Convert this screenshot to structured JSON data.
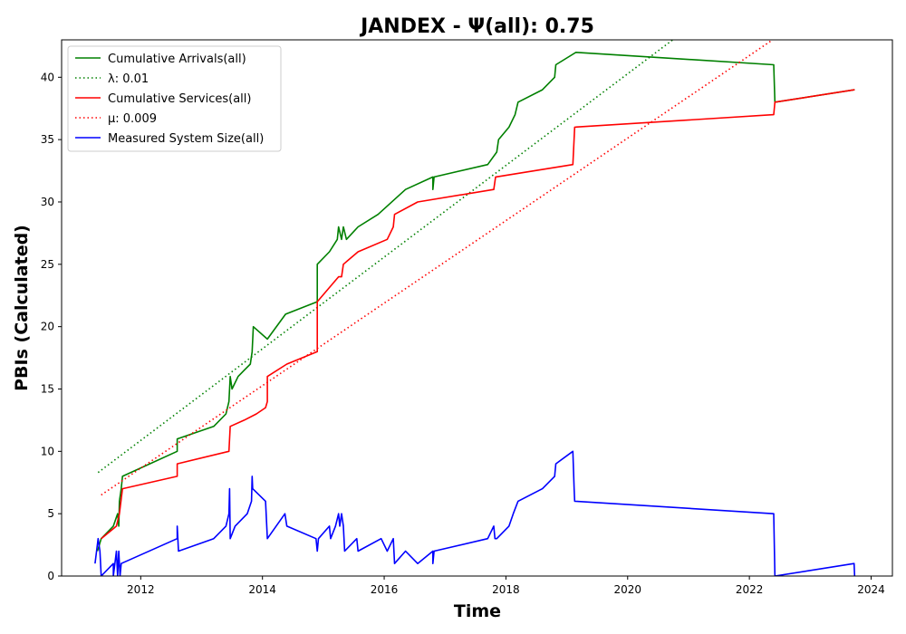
{
  "chart_data": {
    "type": "line",
    "title": "JANDEX -  Ψ(all): 0.75",
    "xlabel": "Time",
    "ylabel": "PBIs (Calculated)",
    "xlim": [
      2010.7,
      2024.35
    ],
    "ylim": [
      0,
      43
    ],
    "xticks": [
      2012,
      2014,
      2016,
      2018,
      2020,
      2022,
      2024
    ],
    "yticks": [
      0,
      5,
      10,
      15,
      20,
      25,
      30,
      35,
      40
    ],
    "grid": false,
    "legend_position": "upper-left",
    "series": [
      {
        "name": "Cumulative Arrivals(all)",
        "color": "#008000",
        "style": "solid",
        "points": [
          [
            2011.29,
            2
          ],
          [
            2011.35,
            3
          ],
          [
            2011.55,
            4
          ],
          [
            2011.62,
            5
          ],
          [
            2011.64,
            4
          ],
          [
            2011.65,
            6
          ],
          [
            2011.68,
            7
          ],
          [
            2011.7,
            8
          ],
          [
            2012.6,
            10
          ],
          [
            2012.6,
            11
          ],
          [
            2013.2,
            12
          ],
          [
            2013.4,
            13
          ],
          [
            2013.45,
            14
          ],
          [
            2013.47,
            16
          ],
          [
            2013.5,
            15
          ],
          [
            2013.6,
            16
          ],
          [
            2013.7,
            16.5
          ],
          [
            2013.8,
            17
          ],
          [
            2013.83,
            18
          ],
          [
            2013.85,
            20
          ],
          [
            2014.08,
            19
          ],
          [
            2014.38,
            21
          ],
          [
            2014.9,
            22
          ],
          [
            2014.9,
            25
          ],
          [
            2015.1,
            26
          ],
          [
            2015.23,
            27
          ],
          [
            2015.25,
            28
          ],
          [
            2015.3,
            27
          ],
          [
            2015.33,
            28
          ],
          [
            2015.38,
            27
          ],
          [
            2015.57,
            28
          ],
          [
            2015.9,
            29
          ],
          [
            2016.35,
            31
          ],
          [
            2016.8,
            32
          ],
          [
            2016.8,
            31
          ],
          [
            2016.82,
            32
          ],
          [
            2017.7,
            33
          ],
          [
            2017.85,
            34
          ],
          [
            2017.88,
            35
          ],
          [
            2018.05,
            36
          ],
          [
            2018.15,
            37
          ],
          [
            2018.2,
            38
          ],
          [
            2018.6,
            39
          ],
          [
            2018.8,
            40
          ],
          [
            2018.82,
            41
          ],
          [
            2019.15,
            42
          ],
          [
            2022.4,
            41
          ],
          [
            2022.42,
            38
          ],
          [
            2023.73,
            39
          ]
        ]
      },
      {
        "name": "λ: 0.01",
        "color": "#008000",
        "style": "dotted",
        "points": [
          [
            2011.3,
            8.3
          ],
          [
            2020.74,
            43
          ]
        ]
      },
      {
        "name": "Cumulative Services(all)",
        "color": "#ff0000",
        "style": "solid",
        "points": [
          [
            2011.35,
            3
          ],
          [
            2011.6,
            4
          ],
          [
            2011.65,
            5
          ],
          [
            2011.7,
            7
          ],
          [
            2012.6,
            8
          ],
          [
            2012.6,
            9
          ],
          [
            2013.45,
            10
          ],
          [
            2013.47,
            12
          ],
          [
            2013.7,
            12.5
          ],
          [
            2013.9,
            13
          ],
          [
            2014.05,
            13.5
          ],
          [
            2014.08,
            14
          ],
          [
            2014.08,
            16
          ],
          [
            2014.4,
            17
          ],
          [
            2014.9,
            18
          ],
          [
            2014.9,
            22
          ],
          [
            2015.25,
            24
          ],
          [
            2015.3,
            24
          ],
          [
            2015.33,
            25
          ],
          [
            2015.57,
            26
          ],
          [
            2016.05,
            27
          ],
          [
            2016.15,
            28
          ],
          [
            2016.17,
            29
          ],
          [
            2016.55,
            30
          ],
          [
            2017.8,
            31
          ],
          [
            2017.83,
            32
          ],
          [
            2019.1,
            33
          ],
          [
            2019.13,
            36
          ],
          [
            2022.4,
            37
          ],
          [
            2022.42,
            38
          ],
          [
            2023.73,
            39
          ]
        ]
      },
      {
        "name": "μ: 0.009",
        "color": "#ff0000",
        "style": "dotted",
        "points": [
          [
            2011.35,
            6.5
          ],
          [
            2022.38,
            43
          ]
        ]
      },
      {
        "name": "Measured System Size(all)",
        "color": "#0000ff",
        "style": "solid",
        "points": [
          [
            2011.25,
            1
          ],
          [
            2011.3,
            3
          ],
          [
            2011.33,
            2
          ],
          [
            2011.35,
            0
          ],
          [
            2011.55,
            1
          ],
          [
            2011.55,
            0
          ],
          [
            2011.6,
            2
          ],
          [
            2011.62,
            0
          ],
          [
            2011.64,
            2
          ],
          [
            2011.66,
            0
          ],
          [
            2011.68,
            1
          ],
          [
            2012.6,
            3
          ],
          [
            2012.6,
            4
          ],
          [
            2012.62,
            2
          ],
          [
            2013.2,
            3
          ],
          [
            2013.4,
            4
          ],
          [
            2013.45,
            5
          ],
          [
            2013.46,
            7
          ],
          [
            2013.47,
            3
          ],
          [
            2013.55,
            4
          ],
          [
            2013.75,
            5
          ],
          [
            2013.82,
            6
          ],
          [
            2013.83,
            8
          ],
          [
            2013.84,
            7
          ],
          [
            2014.05,
            6
          ],
          [
            2014.08,
            3
          ],
          [
            2014.37,
            5
          ],
          [
            2014.4,
            4
          ],
          [
            2014.88,
            3
          ],
          [
            2014.9,
            2
          ],
          [
            2014.92,
            3
          ],
          [
            2015.1,
            4
          ],
          [
            2015.12,
            3
          ],
          [
            2015.2,
            4
          ],
          [
            2015.25,
            5
          ],
          [
            2015.27,
            4
          ],
          [
            2015.3,
            5
          ],
          [
            2015.33,
            4
          ],
          [
            2015.35,
            2
          ],
          [
            2015.55,
            3
          ],
          [
            2015.57,
            2
          ],
          [
            2015.95,
            3
          ],
          [
            2016.05,
            2
          ],
          [
            2016.15,
            3
          ],
          [
            2016.17,
            1
          ],
          [
            2016.35,
            2
          ],
          [
            2016.55,
            1
          ],
          [
            2016.8,
            2
          ],
          [
            2016.8,
            1
          ],
          [
            2016.82,
            2
          ],
          [
            2017.7,
            3
          ],
          [
            2017.8,
            4
          ],
          [
            2017.82,
            3
          ],
          [
            2017.85,
            3
          ],
          [
            2018.05,
            4
          ],
          [
            2018.12,
            5
          ],
          [
            2018.2,
            6
          ],
          [
            2018.6,
            7
          ],
          [
            2018.8,
            8
          ],
          [
            2018.82,
            9
          ],
          [
            2019.1,
            10
          ],
          [
            2019.12,
            7
          ],
          [
            2019.13,
            6
          ],
          [
            2022.4,
            5
          ],
          [
            2022.42,
            0
          ],
          [
            2023.72,
            1
          ],
          [
            2023.73,
            0
          ]
        ]
      }
    ]
  }
}
